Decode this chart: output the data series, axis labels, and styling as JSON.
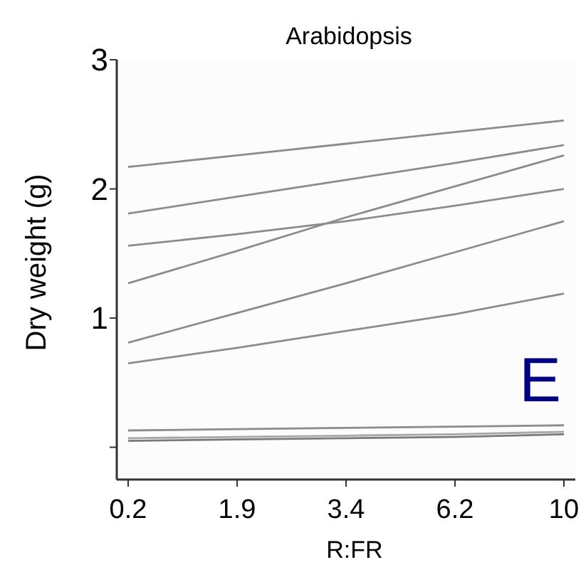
{
  "chart_data": {
    "type": "line",
    "title": "Arabidopsis",
    "xlabel": "R:FR",
    "ylabel": "Dry weight (g)",
    "categories": [
      "0.2",
      "1.9",
      "3.4",
      "6.2",
      "10"
    ],
    "ylim": [
      -0.25,
      3
    ],
    "yticks": [
      {
        "value": 0,
        "label": null
      },
      1,
      2,
      3
    ],
    "grid": false,
    "marker": "none",
    "line_style": "solid",
    "annotations": [
      "E"
    ],
    "series": [
      {
        "color": "#8c8c8c",
        "values": [
          2.17,
          2.26,
          2.35,
          2.44,
          2.53
        ]
      },
      {
        "color": "#8c8c8c",
        "values": [
          1.81,
          1.94,
          2.07,
          2.2,
          2.34
        ]
      },
      {
        "color": "#8c8c8c",
        "values": [
          1.56,
          1.65,
          1.75,
          1.87,
          2.0
        ]
      },
      {
        "color": "#8c8c8c",
        "values": [
          1.27,
          1.52,
          1.78,
          2.02,
          2.26
        ]
      },
      {
        "color": "#8c8c8c",
        "values": [
          0.81,
          1.04,
          1.27,
          1.51,
          1.75
        ]
      },
      {
        "color": "#8c8c8c",
        "values": [
          0.65,
          0.77,
          0.9,
          1.03,
          1.19
        ]
      },
      {
        "color": "#8c8c8c",
        "values": [
          0.13,
          0.14,
          0.15,
          0.16,
          0.17
        ]
      },
      {
        "color": "#7a7a7a",
        "values": [
          0.05,
          0.06,
          0.07,
          0.08,
          0.1
        ]
      },
      {
        "color": "#a8a8a8",
        "values": [
          0.07,
          0.08,
          0.09,
          0.1,
          0.12
        ]
      }
    ]
  }
}
